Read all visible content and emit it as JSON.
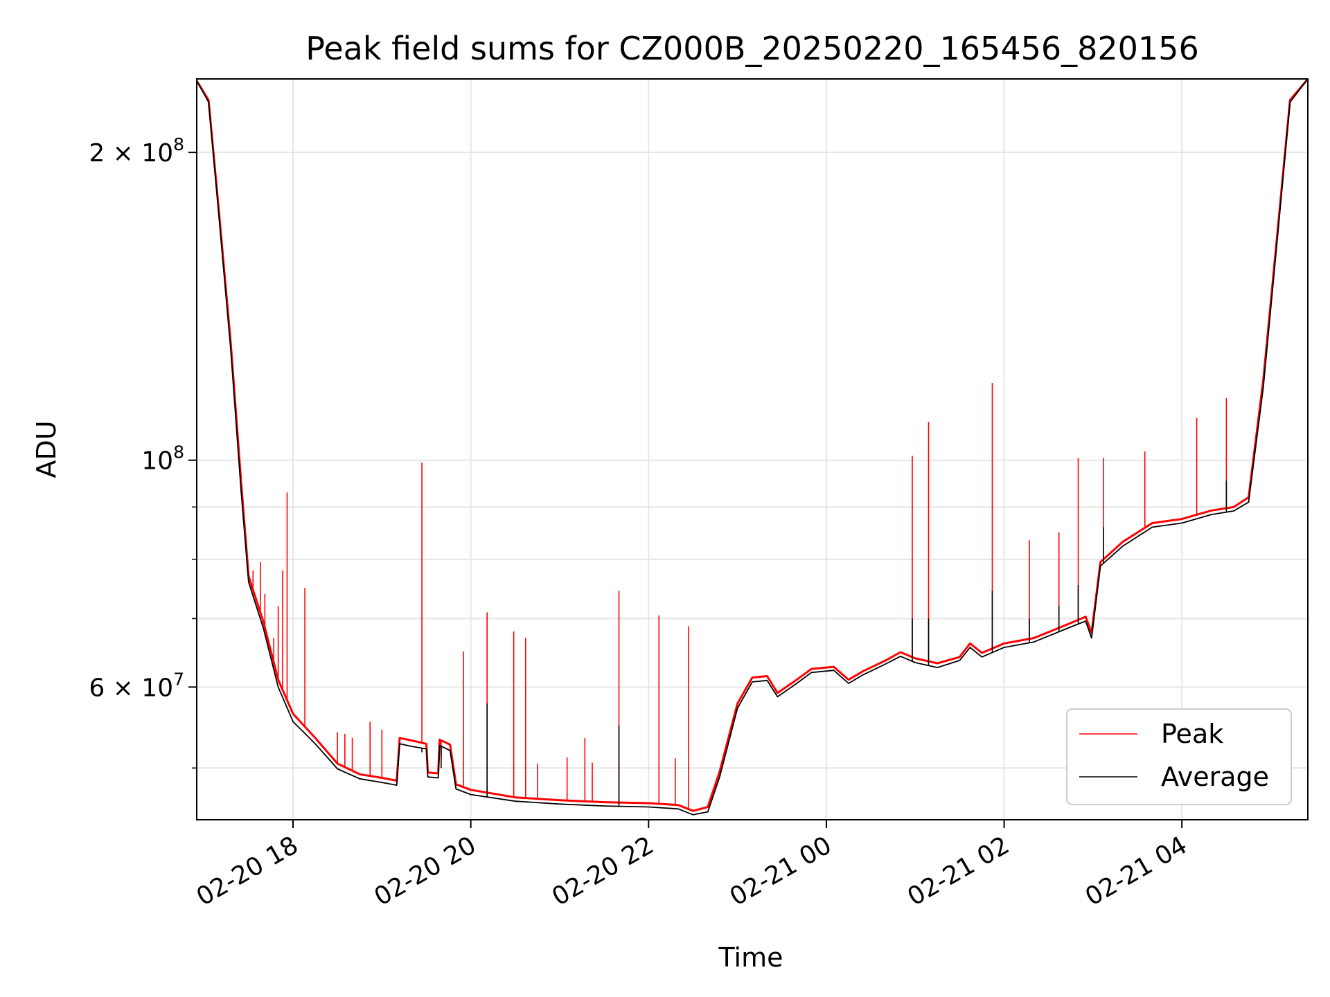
{
  "chart_data": {
    "type": "line",
    "title": "Peak field sums for CZ000B_20250220_165456_820156",
    "xlabel": "Time",
    "ylabel": "ADU",
    "yscale": "log",
    "grid": true,
    "legend_position": "bottom-right",
    "xlim": [
      "2025-02-20 16:55",
      "2025-02-21 05:25"
    ],
    "ylim": [
      44500000,
      236000000
    ],
    "x_ticks": [
      {
        "label": "02-20 18",
        "time": "2025-02-20 18:00"
      },
      {
        "label": "02-20 20",
        "time": "2025-02-20 20:00"
      },
      {
        "label": "02-20 22",
        "time": "2025-02-20 22:00"
      },
      {
        "label": "02-21 00",
        "time": "2025-02-21 00:00"
      },
      {
        "label": "02-21 02",
        "time": "2025-02-21 02:00"
      },
      {
        "label": "02-21 04",
        "time": "2025-02-21 04:00"
      }
    ],
    "y_ticks": [
      {
        "value": 200000000,
        "base": "2 × 10",
        "exp": "8"
      },
      {
        "value": 100000000,
        "base": "10",
        "exp": "8"
      },
      {
        "value": 60000000,
        "base": "6 × 10",
        "exp": "7"
      }
    ],
    "y_minor_ticks": [
      50000000,
      70000000,
      80000000,
      90000000
    ],
    "colors": {
      "peak": "#ff0000",
      "average": "#000000",
      "grid": "#e6e6e6"
    },
    "series": [
      {
        "name": "Peak",
        "color": "#ff0000",
        "points": [
          [
            "2025-02-20 16:55",
            235000000
          ],
          [
            "2025-02-20 17:03",
            225000000
          ],
          [
            "2025-02-20 17:10",
            175000000
          ],
          [
            "2025-02-20 17:18",
            130000000
          ],
          [
            "2025-02-20 17:25",
            95000000
          ],
          [
            "2025-02-20 17:30",
            77000000
          ],
          [
            "2025-02-20 17:40",
            69500000
          ],
          [
            "2025-02-20 17:50",
            61000000
          ],
          [
            "2025-02-20 18:00",
            56500000
          ],
          [
            "2025-02-20 18:15",
            53500000
          ],
          [
            "2025-02-20 18:30",
            50500000
          ],
          [
            "2025-02-20 18:45",
            49300000
          ],
          [
            "2025-02-20 19:00",
            48900000
          ],
          [
            "2025-02-20 19:10",
            48600000
          ],
          [
            "2025-02-20 19:12",
            53500000
          ],
          [
            "2025-02-20 19:20",
            53200000
          ],
          [
            "2025-02-20 19:30",
            52800000
          ],
          [
            "2025-02-20 19:31",
            49500000
          ],
          [
            "2025-02-20 19:38",
            49400000
          ],
          [
            "2025-02-20 19:39",
            53300000
          ],
          [
            "2025-02-20 19:46",
            52700000
          ],
          [
            "2025-02-20 19:50",
            48200000
          ],
          [
            "2025-02-20 20:00",
            47600000
          ],
          [
            "2025-02-20 20:30",
            46800000
          ],
          [
            "2025-02-20 21:00",
            46500000
          ],
          [
            "2025-02-20 21:30",
            46300000
          ],
          [
            "2025-02-20 22:00",
            46200000
          ],
          [
            "2025-02-20 22:20",
            46000000
          ],
          [
            "2025-02-20 22:30",
            45400000
          ],
          [
            "2025-02-20 22:40",
            45800000
          ],
          [
            "2025-02-20 22:48",
            49600000
          ],
          [
            "2025-02-20 23:00",
            57800000
          ],
          [
            "2025-02-20 23:10",
            61300000
          ],
          [
            "2025-02-20 23:20",
            61500000
          ],
          [
            "2025-02-20 23:27",
            59200000
          ],
          [
            "2025-02-20 23:40",
            61000000
          ],
          [
            "2025-02-20 23:50",
            62500000
          ],
          [
            "2025-02-21 00:05",
            62800000
          ],
          [
            "2025-02-21 00:15",
            61000000
          ],
          [
            "2025-02-21 00:25",
            62200000
          ],
          [
            "2025-02-21 00:40",
            63700000
          ],
          [
            "2025-02-21 00:50",
            64900000
          ],
          [
            "2025-02-21 01:00",
            64000000
          ],
          [
            "2025-02-21 01:15",
            63300000
          ],
          [
            "2025-02-21 01:30",
            64200000
          ],
          [
            "2025-02-21 01:37",
            66200000
          ],
          [
            "2025-02-21 01:45",
            64800000
          ],
          [
            "2025-02-21 02:00",
            66200000
          ],
          [
            "2025-02-21 02:20",
            67000000
          ],
          [
            "2025-02-21 02:45",
            69300000
          ],
          [
            "2025-02-21 02:55",
            70300000
          ],
          [
            "2025-02-21 02:59",
            67800000
          ],
          [
            "2025-02-21 03:05",
            79500000
          ],
          [
            "2025-02-21 03:20",
            83200000
          ],
          [
            "2025-02-21 03:40",
            86800000
          ],
          [
            "2025-02-21 04:00",
            87600000
          ],
          [
            "2025-02-21 04:20",
            89300000
          ],
          [
            "2025-02-21 04:35",
            90000000
          ],
          [
            "2025-02-21 04:45",
            92000000
          ],
          [
            "2025-02-21 04:55",
            120000000
          ],
          [
            "2025-02-21 05:05",
            170000000
          ],
          [
            "2025-02-21 05:13",
            225000000
          ],
          [
            "2025-02-21 05:25",
            236000000
          ]
        ],
        "spikes": [
          [
            "2025-02-20 17:33",
            78000000
          ],
          [
            "2025-02-20 17:38",
            79500000
          ],
          [
            "2025-02-20 17:41",
            74000000
          ],
          [
            "2025-02-20 17:47",
            67000000
          ],
          [
            "2025-02-20 17:50",
            72000000
          ],
          [
            "2025-02-20 17:53",
            78000000
          ],
          [
            "2025-02-20 17:56",
            93000000
          ],
          [
            "2025-02-20 18:08",
            75000000
          ],
          [
            "2025-02-20 18:30",
            54200000
          ],
          [
            "2025-02-20 18:35",
            54000000
          ],
          [
            "2025-02-20 18:40",
            53500000
          ],
          [
            "2025-02-20 18:52",
            55500000
          ],
          [
            "2025-02-20 19:00",
            54500000
          ],
          [
            "2025-02-20 19:27",
            99500000
          ],
          [
            "2025-02-20 19:40",
            51200000
          ],
          [
            "2025-02-20 19:55",
            65000000
          ],
          [
            "2025-02-20 20:11",
            71000000
          ],
          [
            "2025-02-20 20:29",
            68000000
          ],
          [
            "2025-02-20 20:37",
            67000000
          ],
          [
            "2025-02-20 20:45",
            50500000
          ],
          [
            "2025-02-20 21:05",
            51200000
          ],
          [
            "2025-02-20 21:17",
            53500000
          ],
          [
            "2025-02-20 21:22",
            50600000
          ],
          [
            "2025-02-20 21:40",
            74500000
          ],
          [
            "2025-02-20 22:07",
            70500000
          ],
          [
            "2025-02-20 22:18",
            51100000
          ],
          [
            "2025-02-20 22:27",
            68800000
          ],
          [
            "2025-02-21 00:58",
            101000000
          ],
          [
            "2025-02-21 01:09",
            109000000
          ],
          [
            "2025-02-21 01:52",
            119000000
          ],
          [
            "2025-02-21 02:17",
            83500000
          ],
          [
            "2025-02-21 02:37",
            85000000
          ],
          [
            "2025-02-21 02:50",
            100500000
          ],
          [
            "2025-02-21 03:07",
            100500000
          ],
          [
            "2025-02-21 03:35",
            102000000
          ],
          [
            "2025-02-21 04:10",
            110000000
          ],
          [
            "2025-02-21 04:30",
            115000000
          ]
        ]
      },
      {
        "name": "Average",
        "color": "#000000",
        "points": [
          [
            "2025-02-20 16:55",
            235000000
          ],
          [
            "2025-02-20 17:03",
            224000000
          ],
          [
            "2025-02-20 17:10",
            173000000
          ],
          [
            "2025-02-20 17:18",
            128000000
          ],
          [
            "2025-02-20 17:25",
            93000000
          ],
          [
            "2025-02-20 17:30",
            76000000
          ],
          [
            "2025-02-20 17:40",
            68500000
          ],
          [
            "2025-02-20 17:50",
            60000000
          ],
          [
            "2025-02-20 18:00",
            55500000
          ],
          [
            "2025-02-20 18:15",
            52800000
          ],
          [
            "2025-02-20 18:30",
            49900000
          ],
          [
            "2025-02-20 18:45",
            48800000
          ],
          [
            "2025-02-20 19:00",
            48400000
          ],
          [
            "2025-02-20 19:10",
            48100000
          ],
          [
            "2025-02-20 19:12",
            52800000
          ],
          [
            "2025-02-20 19:20",
            52500000
          ],
          [
            "2025-02-20 19:30",
            52200000
          ],
          [
            "2025-02-20 19:31",
            49000000
          ],
          [
            "2025-02-20 19:38",
            48900000
          ],
          [
            "2025-02-20 19:39",
            52600000
          ],
          [
            "2025-02-20 19:46",
            52000000
          ],
          [
            "2025-02-20 19:50",
            47700000
          ],
          [
            "2025-02-20 20:00",
            47100000
          ],
          [
            "2025-02-20 20:30",
            46400000
          ],
          [
            "2025-02-20 21:00",
            46100000
          ],
          [
            "2025-02-20 21:30",
            45900000
          ],
          [
            "2025-02-20 22:00",
            45800000
          ],
          [
            "2025-02-20 22:20",
            45600000
          ],
          [
            "2025-02-20 22:30",
            45000000
          ],
          [
            "2025-02-20 22:40",
            45300000
          ],
          [
            "2025-02-20 22:48",
            49000000
          ],
          [
            "2025-02-20 23:00",
            57200000
          ],
          [
            "2025-02-20 23:10",
            60700000
          ],
          [
            "2025-02-20 23:20",
            60900000
          ],
          [
            "2025-02-20 23:27",
            58700000
          ],
          [
            "2025-02-20 23:40",
            60500000
          ],
          [
            "2025-02-20 23:50",
            62000000
          ],
          [
            "2025-02-21 00:05",
            62300000
          ],
          [
            "2025-02-21 00:15",
            60500000
          ],
          [
            "2025-02-21 00:25",
            61700000
          ],
          [
            "2025-02-21 00:40",
            63200000
          ],
          [
            "2025-02-21 00:50",
            64300000
          ],
          [
            "2025-02-21 01:00",
            63400000
          ],
          [
            "2025-02-21 01:15",
            62700000
          ],
          [
            "2025-02-21 01:30",
            63700000
          ],
          [
            "2025-02-21 01:37",
            65600000
          ],
          [
            "2025-02-21 01:45",
            64200000
          ],
          [
            "2025-02-21 02:00",
            65600000
          ],
          [
            "2025-02-21 02:20",
            66400000
          ],
          [
            "2025-02-21 02:45",
            68700000
          ],
          [
            "2025-02-21 02:55",
            69600000
          ],
          [
            "2025-02-21 02:59",
            67000000
          ],
          [
            "2025-02-21 03:05",
            78800000
          ],
          [
            "2025-02-21 03:20",
            82400000
          ],
          [
            "2025-02-21 03:40",
            86000000
          ],
          [
            "2025-02-21 04:00",
            86800000
          ],
          [
            "2025-02-21 04:20",
            88500000
          ],
          [
            "2025-02-21 04:35",
            89200000
          ],
          [
            "2025-02-21 04:45",
            91000000
          ],
          [
            "2025-02-21 04:55",
            118000000
          ],
          [
            "2025-02-21 05:05",
            168000000
          ],
          [
            "2025-02-21 05:13",
            224000000
          ],
          [
            "2025-02-21 05:25",
            236000000
          ]
        ],
        "spikes": [
          [
            "2025-02-20 19:27",
            51800000
          ],
          [
            "2025-02-20 19:40",
            50000000
          ],
          [
            "2025-02-20 20:11",
            57800000
          ],
          [
            "2025-02-20 21:40",
            55000000
          ],
          [
            "2025-02-21 00:58",
            70000000
          ],
          [
            "2025-02-21 01:09",
            70000000
          ],
          [
            "2025-02-21 01:52",
            74500000
          ],
          [
            "2025-02-21 02:17",
            70000000
          ],
          [
            "2025-02-21 02:37",
            72000000
          ],
          [
            "2025-02-21 02:50",
            75500000
          ],
          [
            "2025-02-21 03:07",
            86000000
          ],
          [
            "2025-02-21 04:30",
            95500000
          ]
        ]
      }
    ]
  }
}
